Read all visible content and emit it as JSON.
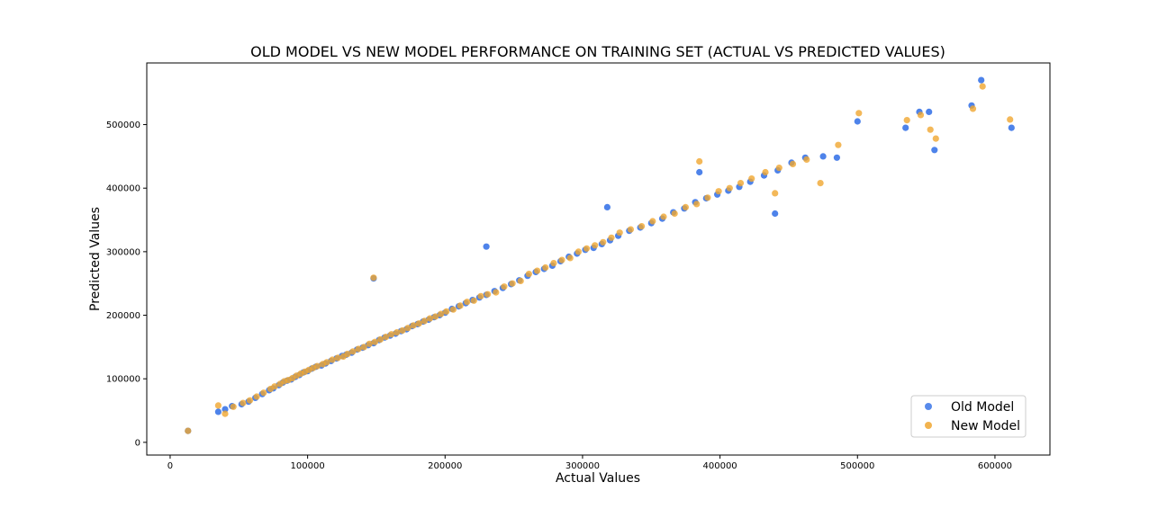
{
  "chart_data": {
    "type": "scatter",
    "title": "OLD MODEL VS NEW MODEL PERFORMANCE ON TRAINING SET (ACTUAL VS PREDICTED VALUES)",
    "xlabel": "Actual Values",
    "ylabel": "Predicted Values",
    "xlim": [
      -17000,
      640000
    ],
    "ylim": [
      -20000,
      597000
    ],
    "xticks": [
      0,
      100000,
      200000,
      300000,
      400000,
      500000,
      600000
    ],
    "xtick_labels": [
      "0",
      "100000",
      "200000",
      "300000",
      "400000",
      "500000",
      "600000"
    ],
    "yticks": [
      0,
      100000,
      200000,
      300000,
      400000,
      500000
    ],
    "ytick_labels": [
      "0",
      "100000",
      "200000",
      "300000",
      "400000",
      "500000"
    ],
    "grid": false,
    "legend_position": "lower-right",
    "series": [
      {
        "name": "Old Model",
        "color": "#3b75e8",
        "x": [
          13000,
          35000,
          40000,
          45000,
          52000,
          57000,
          62000,
          67000,
          72000,
          75000,
          79000,
          82000,
          85000,
          88000,
          91000,
          94000,
          97000,
          100000,
          103000,
          106000,
          110000,
          113000,
          117000,
          121000,
          125000,
          128000,
          132000,
          136000,
          140000,
          144000,
          148000,
          152000,
          156000,
          160000,
          164000,
          168000,
          172000,
          176000,
          180000,
          184000,
          188000,
          192000,
          196000,
          200000,
          205000,
          210000,
          215000,
          220000,
          225000,
          230000,
          236000,
          242000,
          248000,
          254000,
          260000,
          266000,
          272000,
          278000,
          284000,
          290000,
          296000,
          302000,
          308000,
          314000,
          320000,
          326000,
          334000,
          342000,
          350000,
          358000,
          366000,
          374000,
          382000,
          390000,
          398000,
          406000,
          414000,
          422000,
          432000,
          442000,
          452000,
          462000,
          475000,
          485000,
          500000,
          535000,
          545000,
          552000,
          556000,
          583000,
          590000,
          612000,
          230000,
          148000,
          318000,
          385000,
          440000
        ],
        "y": [
          18000,
          48000,
          52000,
          57000,
          60000,
          64000,
          70000,
          76000,
          82000,
          85000,
          90000,
          94000,
          97000,
          99000,
          103000,
          106000,
          110000,
          112000,
          116000,
          119000,
          121000,
          124000,
          128000,
          132000,
          136000,
          138000,
          141000,
          146000,
          149000,
          153000,
          156000,
          161000,
          165000,
          168000,
          171000,
          175000,
          178000,
          183000,
          186000,
          190000,
          193000,
          197000,
          200000,
          204000,
          210000,
          214000,
          219000,
          224000,
          228000,
          232000,
          238000,
          243000,
          249000,
          255000,
          262000,
          268000,
          273000,
          278000,
          285000,
          292000,
          297000,
          303000,
          306000,
          312000,
          318000,
          325000,
          333000,
          338000,
          345000,
          352000,
          362000,
          368000,
          378000,
          384000,
          390000,
          396000,
          402000,
          410000,
          420000,
          428000,
          440000,
          448000,
          450000,
          448000,
          505000,
          495000,
          520000,
          520000,
          460000,
          530000,
          570000,
          495000,
          308000,
          258000,
          370000,
          425000,
          360000
        ]
      },
      {
        "name": "New Model",
        "color": "#f0a630",
        "x": [
          13000,
          35000,
          40000,
          46000,
          53000,
          58000,
          63000,
          68000,
          73000,
          76000,
          80000,
          83000,
          86000,
          89000,
          92000,
          95000,
          98000,
          101000,
          104000,
          107000,
          111000,
          114000,
          118000,
          122000,
          126000,
          129000,
          133000,
          137000,
          141000,
          145000,
          149000,
          153000,
          157000,
          161000,
          165000,
          169000,
          173000,
          177000,
          181000,
          185000,
          189000,
          193000,
          197000,
          201000,
          206000,
          211000,
          216000,
          221000,
          226000,
          231000,
          237000,
          243000,
          249000,
          255000,
          261000,
          267000,
          273000,
          279000,
          285000,
          291000,
          297000,
          303000,
          309000,
          315000,
          321000,
          327000,
          335000,
          343000,
          351000,
          359000,
          367000,
          375000,
          383000,
          391000,
          399000,
          407000,
          415000,
          423000,
          433000,
          443000,
          453000,
          463000,
          473000,
          486000,
          501000,
          536000,
          546000,
          553000,
          557000,
          584000,
          591000,
          611000,
          148000,
          385000,
          440000
        ],
        "y": [
          18000,
          58000,
          45000,
          56000,
          62000,
          66000,
          72000,
          78000,
          84000,
          88000,
          92000,
          96000,
          98000,
          101000,
          105000,
          108000,
          111000,
          114000,
          117000,
          120000,
          123000,
          126000,
          130000,
          133000,
          135000,
          139000,
          143000,
          147000,
          150000,
          155000,
          158000,
          162000,
          166000,
          170000,
          173000,
          176000,
          180000,
          184000,
          187000,
          191000,
          195000,
          198000,
          202000,
          206000,
          209000,
          215000,
          221000,
          223000,
          230000,
          233000,
          236000,
          245000,
          250000,
          254000,
          265000,
          270000,
          275000,
          282000,
          287000,
          290000,
          300000,
          305000,
          310000,
          315000,
          322000,
          330000,
          335000,
          340000,
          348000,
          355000,
          360000,
          370000,
          375000,
          385000,
          395000,
          400000,
          408000,
          415000,
          425000,
          432000,
          438000,
          445000,
          408000,
          468000,
          518000,
          507000,
          515000,
          492000,
          478000,
          525000,
          560000,
          508000,
          259000,
          442000,
          392000
        ]
      }
    ]
  }
}
